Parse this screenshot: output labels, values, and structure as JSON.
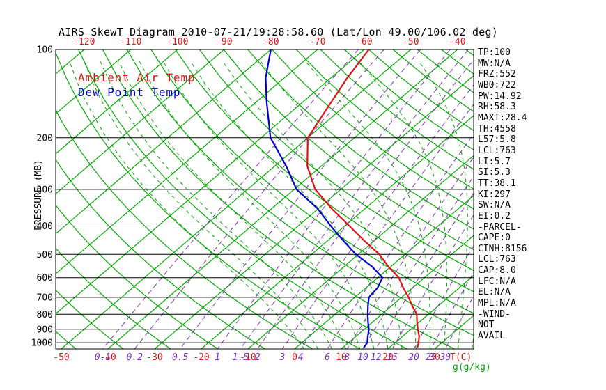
{
  "chart_data": {
    "type": "line",
    "variant": "skew-t-log-p",
    "title": "AIRS SkewT Diagram 2010-07-21/19:28:58.60 (Lat/Lon 49.00/106.02 deg)",
    "legend": {
      "position": "top-left-inside",
      "entries": [
        {
          "label": "Ambient Air Temp",
          "color": "#DC1414"
        },
        {
          "label": "Dew Point Temp",
          "color": "#0000CC"
        }
      ]
    },
    "axes": {
      "pressure_label": "PRESSURE (MB)",
      "pressure_scale": "log",
      "pressure_range": [
        100,
        1050
      ],
      "pressure_ticks": [
        100,
        200,
        300,
        400,
        500,
        600,
        700,
        800,
        900,
        1000
      ],
      "top_temp_ticks": [
        -120,
        -110,
        -100,
        -90,
        -80,
        -70,
        -60,
        -50,
        -40
      ],
      "bottom_temp_ticks": [
        -50,
        -40,
        -30,
        -20,
        -10,
        0,
        10,
        20,
        30
      ],
      "temp_unit": "T(C)",
      "mixing_ratio_ticks": [
        0.1,
        0.2,
        0.5,
        1,
        1.5,
        2,
        3,
        4,
        6,
        8,
        10,
        12,
        15,
        20,
        25,
        30
      ],
      "mixing_unit": "g(g/kg)"
    },
    "series": [
      {
        "name": "Ambient Air Temp",
        "color": "#DC1414",
        "points_p_mb_t_c": [
          [
            1040,
            26
          ],
          [
            1000,
            25
          ],
          [
            950,
            23.5
          ],
          [
            900,
            21.5
          ],
          [
            850,
            19.5
          ],
          [
            800,
            17.5
          ],
          [
            750,
            14.5
          ],
          [
            700,
            11.5
          ],
          [
            650,
            8
          ],
          [
            600,
            4.5
          ],
          [
            550,
            -0.5
          ],
          [
            500,
            -5.5
          ],
          [
            450,
            -12
          ],
          [
            400,
            -19
          ],
          [
            350,
            -27
          ],
          [
            300,
            -35.5
          ],
          [
            250,
            -43
          ],
          [
            200,
            -50
          ],
          [
            150,
            -54
          ],
          [
            125,
            -56.5
          ],
          [
            100,
            -59
          ]
        ]
      },
      {
        "name": "Dew Point Temp",
        "color": "#0000CC",
        "points_p_mb_t_c": [
          [
            1040,
            14.5
          ],
          [
            1000,
            14
          ],
          [
            950,
            12.5
          ],
          [
            900,
            11
          ],
          [
            850,
            9
          ],
          [
            800,
            7
          ],
          [
            750,
            5
          ],
          [
            700,
            3
          ],
          [
            650,
            2.5
          ],
          [
            600,
            1
          ],
          [
            550,
            -4
          ],
          [
            500,
            -10.5
          ],
          [
            450,
            -16.5
          ],
          [
            400,
            -23
          ],
          [
            350,
            -30
          ],
          [
            300,
            -39.5
          ],
          [
            250,
            -47.5
          ],
          [
            200,
            -58
          ],
          [
            150,
            -68
          ],
          [
            125,
            -74
          ],
          [
            100,
            -80
          ]
        ]
      }
    ],
    "background": {
      "isotherm_color": "#00A800",
      "dry_adiabat_color": "#00A800",
      "moist_adiabat_color": "#00A800",
      "mixing_ratio_color": "#7B2FBF",
      "grid_color": "#000000"
    }
  },
  "stats_panel": {
    "lines": [
      "TP:100",
      "MW:N/A",
      "FRZ:552",
      "WB0:722",
      "PW:14.92",
      "RH:58.3",
      "MAXT:28.4",
      "TH:4558",
      "L57:5.8",
      "LCL:763",
      "LI:5.7",
      "SI:5.3",
      "TT:38.1",
      "KI:297",
      "SW:N/A",
      "EI:0.2",
      "-PARCEL-",
      "CAPE:0",
      "CINH:8156",
      "LCL:763",
      "CAP:8.0",
      "LFC:N/A",
      "EL:N/A",
      "MPL:N/A",
      "-WIND-",
      "NOT",
      "AVAIL"
    ]
  }
}
